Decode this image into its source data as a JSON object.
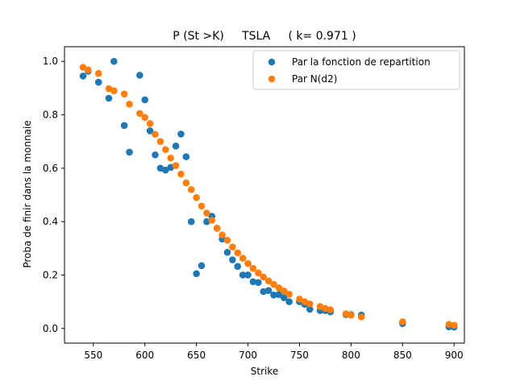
{
  "chart_data": {
    "type": "scatter",
    "title": "P (St >K)     TSLA     ( k= 0.971 )",
    "xlabel": "Strike",
    "ylabel": "Proba de finir dans la monnaie",
    "xlim": [
      522,
      910
    ],
    "ylim": [
      -0.055,
      1.055
    ],
    "xticks": [
      550,
      600,
      650,
      700,
      750,
      800,
      850,
      900
    ],
    "yticks": [
      0.0,
      0.2,
      0.4,
      0.6,
      0.8,
      1.0
    ],
    "xtick_labels": [
      "550",
      "600",
      "650",
      "700",
      "750",
      "800",
      "850",
      "900"
    ],
    "ytick_labels": [
      "0.0",
      "0.2",
      "0.4",
      "0.6",
      "0.8",
      "1.0"
    ],
    "legend_position": "top-right",
    "grid": false,
    "series": [
      {
        "name": "Par la fonction de repartition",
        "color": "#1f77b4",
        "points": [
          [
            540,
            0.945
          ],
          [
            545,
            0.963
          ],
          [
            555,
            0.922
          ],
          [
            565,
            0.862
          ],
          [
            570,
            1.0
          ],
          [
            580,
            0.76
          ],
          [
            585,
            0.66
          ],
          [
            595,
            0.948
          ],
          [
            600,
            0.856
          ],
          [
            605,
            0.74
          ],
          [
            610,
            0.65
          ],
          [
            615,
            0.6
          ],
          [
            620,
            0.593
          ],
          [
            625,
            0.603
          ],
          [
            630,
            0.683
          ],
          [
            635,
            0.728
          ],
          [
            640,
            0.643
          ],
          [
            645,
            0.4
          ],
          [
            650,
            0.205
          ],
          [
            655,
            0.235
          ],
          [
            660,
            0.4
          ],
          [
            665,
            0.42
          ],
          [
            670,
            0.375
          ],
          [
            675,
            0.335
          ],
          [
            680,
            0.285
          ],
          [
            685,
            0.257
          ],
          [
            690,
            0.232
          ],
          [
            695,
            0.2
          ],
          [
            700,
            0.2
          ],
          [
            705,
            0.175
          ],
          [
            710,
            0.172
          ],
          [
            715,
            0.138
          ],
          [
            720,
            0.142
          ],
          [
            725,
            0.125
          ],
          [
            730,
            0.127
          ],
          [
            735,
            0.115
          ],
          [
            740,
            0.1
          ],
          [
            750,
            0.1
          ],
          [
            755,
            0.09
          ],
          [
            760,
            0.072
          ],
          [
            770,
            0.067
          ],
          [
            775,
            0.067
          ],
          [
            780,
            0.062
          ],
          [
            795,
            0.052
          ],
          [
            800,
            0.052
          ],
          [
            810,
            0.05
          ],
          [
            850,
            0.018
          ],
          [
            895,
            0.006
          ],
          [
            900,
            0.005
          ]
        ]
      },
      {
        "name": "Par N(d2)",
        "color": "#ff7f0e",
        "points": [
          [
            540,
            0.978
          ],
          [
            545,
            0.968
          ],
          [
            555,
            0.955
          ],
          [
            565,
            0.898
          ],
          [
            570,
            0.89
          ],
          [
            580,
            0.878
          ],
          [
            585,
            0.84
          ],
          [
            595,
            0.805
          ],
          [
            600,
            0.79
          ],
          [
            605,
            0.767
          ],
          [
            610,
            0.727
          ],
          [
            615,
            0.7
          ],
          [
            620,
            0.67
          ],
          [
            625,
            0.638
          ],
          [
            630,
            0.61
          ],
          [
            635,
            0.578
          ],
          [
            640,
            0.545
          ],
          [
            645,
            0.52
          ],
          [
            650,
            0.49
          ],
          [
            655,
            0.458
          ],
          [
            660,
            0.432
          ],
          [
            665,
            0.405
          ],
          [
            670,
            0.375
          ],
          [
            675,
            0.35
          ],
          [
            680,
            0.33
          ],
          [
            685,
            0.305
          ],
          [
            690,
            0.283
          ],
          [
            695,
            0.263
          ],
          [
            700,
            0.243
          ],
          [
            705,
            0.225
          ],
          [
            710,
            0.208
          ],
          [
            715,
            0.193
          ],
          [
            720,
            0.178
          ],
          [
            725,
            0.165
          ],
          [
            730,
            0.152
          ],
          [
            735,
            0.14
          ],
          [
            740,
            0.128
          ],
          [
            750,
            0.11
          ],
          [
            755,
            0.1
          ],
          [
            760,
            0.092
          ],
          [
            770,
            0.082
          ],
          [
            775,
            0.075
          ],
          [
            780,
            0.07
          ],
          [
            795,
            0.055
          ],
          [
            800,
            0.05
          ],
          [
            810,
            0.043
          ],
          [
            850,
            0.025
          ],
          [
            895,
            0.015
          ],
          [
            900,
            0.012
          ]
        ]
      }
    ]
  }
}
